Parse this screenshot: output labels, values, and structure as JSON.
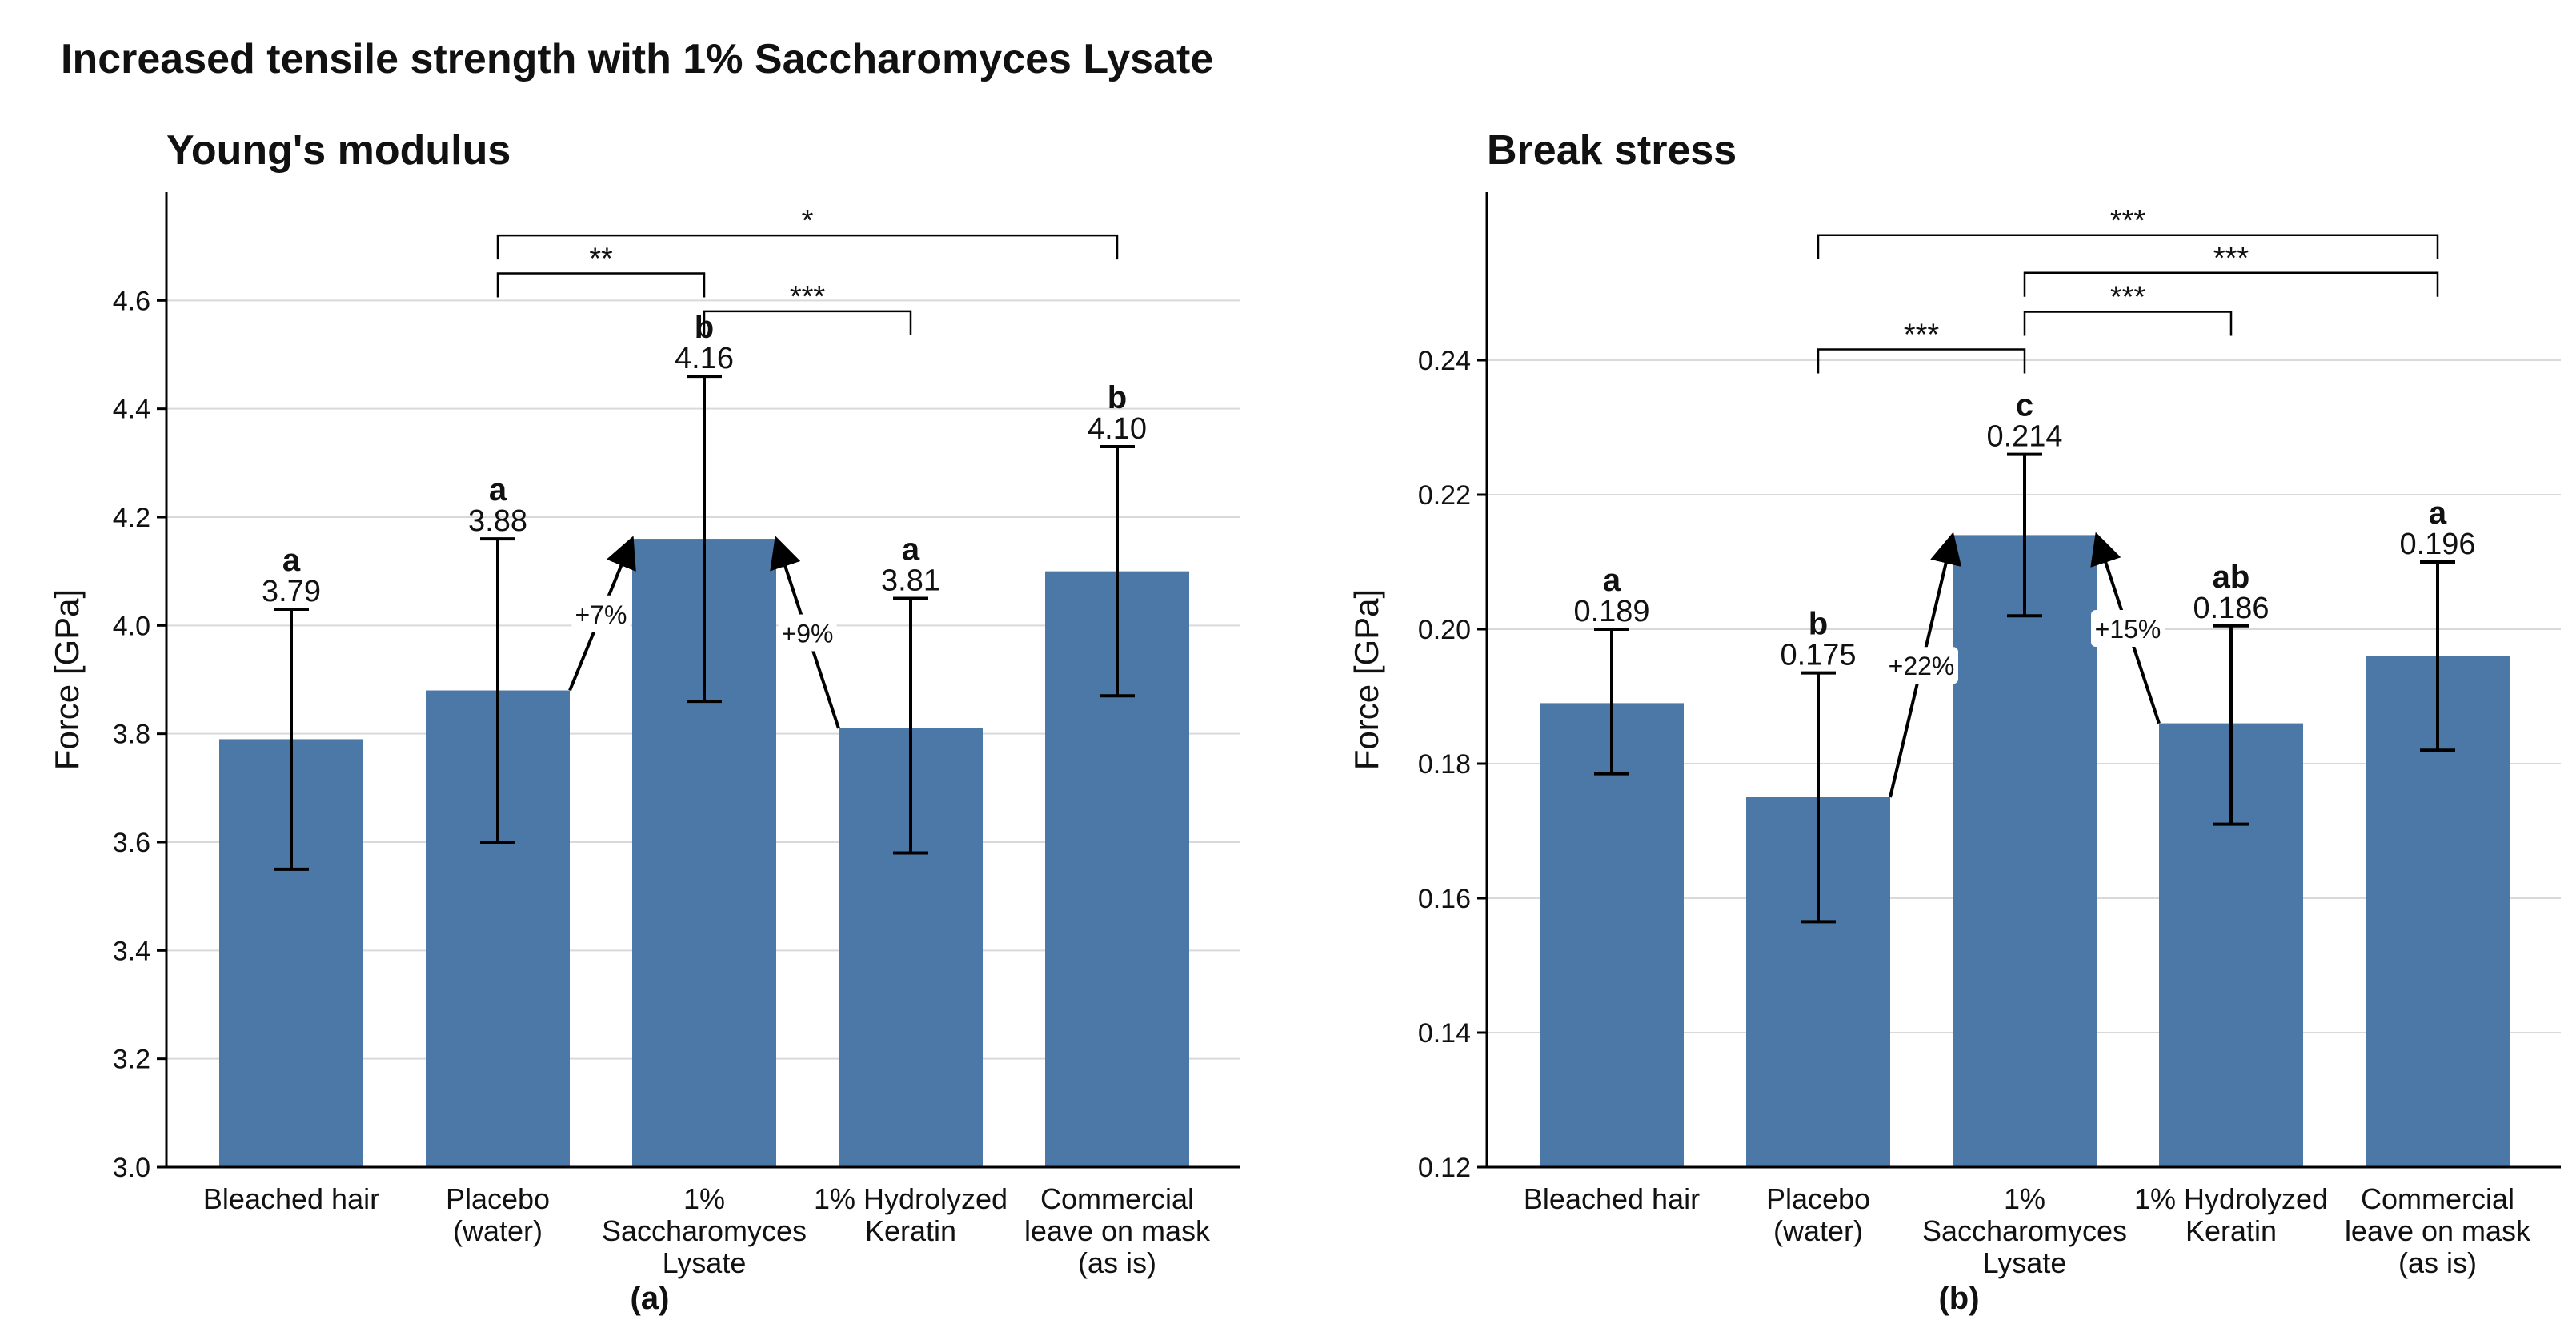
{
  "title": "Increased tensile strength with 1% Saccharomyces Lysate",
  "chart_data": [
    {
      "type": "bar",
      "title": "Young's modulus",
      "panel_label": "(a)",
      "ylabel": "Force [GPa]",
      "ylim": [
        3.0,
        4.8
      ],
      "yticks": [
        3.0,
        3.2,
        3.4,
        3.6,
        3.8,
        4.0,
        4.2,
        4.4,
        4.6
      ],
      "tick_decimals": 1,
      "grid": true,
      "bar_color": "#4c78a8",
      "categories": [
        [
          "Bleached hair"
        ],
        [
          "Placebo",
          "(water)"
        ],
        [
          "1%",
          "Saccharomyces",
          "Lysate"
        ],
        [
          "1% Hydrolyzed",
          "Keratin"
        ],
        [
          "Commercial",
          "leave on mask",
          "(as is)"
        ]
      ],
      "values": [
        3.79,
        3.88,
        4.16,
        3.81,
        4.1
      ],
      "value_labels": [
        "3.79",
        "3.88",
        "4.16",
        "3.81",
        "4.10"
      ],
      "error_low": [
        3.55,
        3.6,
        3.86,
        3.58,
        3.87
      ],
      "error_high": [
        4.03,
        4.16,
        4.46,
        4.05,
        4.33
      ],
      "group_letters": [
        "a",
        "a",
        "b",
        "a",
        "b"
      ],
      "significance": [
        {
          "from": 1,
          "to": 4,
          "label": "*",
          "level": 4.72
        },
        {
          "from": 1,
          "to": 2,
          "label": "**",
          "level": 4.65
        },
        {
          "from": 2,
          "to": 3,
          "label": "***",
          "level": 4.58
        }
      ],
      "changes": [
        {
          "from": 1,
          "to": 2,
          "label": "+7%"
        },
        {
          "from": 3,
          "to": 2,
          "label": "+9%"
        }
      ]
    },
    {
      "type": "bar",
      "title": "Break stress",
      "panel_label": "(b)",
      "ylabel": "Force [GPa]",
      "ylim": [
        0.12,
        0.265
      ],
      "yticks": [
        0.12,
        0.14,
        0.16,
        0.18,
        0.2,
        0.22,
        0.24
      ],
      "tick_decimals": 2,
      "grid": true,
      "bar_color": "#4c78a8",
      "categories": [
        [
          "Bleached hair"
        ],
        [
          "Placebo",
          "(water)"
        ],
        [
          "1%",
          "Saccharomyces",
          "Lysate"
        ],
        [
          "1% Hydrolyzed",
          "Keratin"
        ],
        [
          "Commercial",
          "leave on mask",
          "(as is)"
        ]
      ],
      "values": [
        0.189,
        0.175,
        0.214,
        0.186,
        0.196
      ],
      "value_labels": [
        "0.189",
        "0.175",
        "0.214",
        "0.186",
        "0.196"
      ],
      "error_low": [
        0.1785,
        0.1565,
        0.202,
        0.171,
        0.182
      ],
      "error_high": [
        0.2,
        0.1935,
        0.226,
        0.2005,
        0.21
      ],
      "group_letters": [
        "a",
        "b",
        "c",
        "ab",
        "a"
      ],
      "significance": [
        {
          "from": 1,
          "to": 4,
          "label": "***",
          "level": 0.2586
        },
        {
          "from": 2,
          "to": 4,
          "label": "***",
          "level": 0.253
        },
        {
          "from": 2,
          "to": 3,
          "label": "***",
          "level": 0.2472
        },
        {
          "from": 1,
          "to": 2,
          "label": "***",
          "level": 0.2416
        }
      ],
      "changes": [
        {
          "from": 1,
          "to": 2,
          "label": "+22%"
        },
        {
          "from": 3,
          "to": 2,
          "label": "+15%"
        }
      ]
    }
  ]
}
